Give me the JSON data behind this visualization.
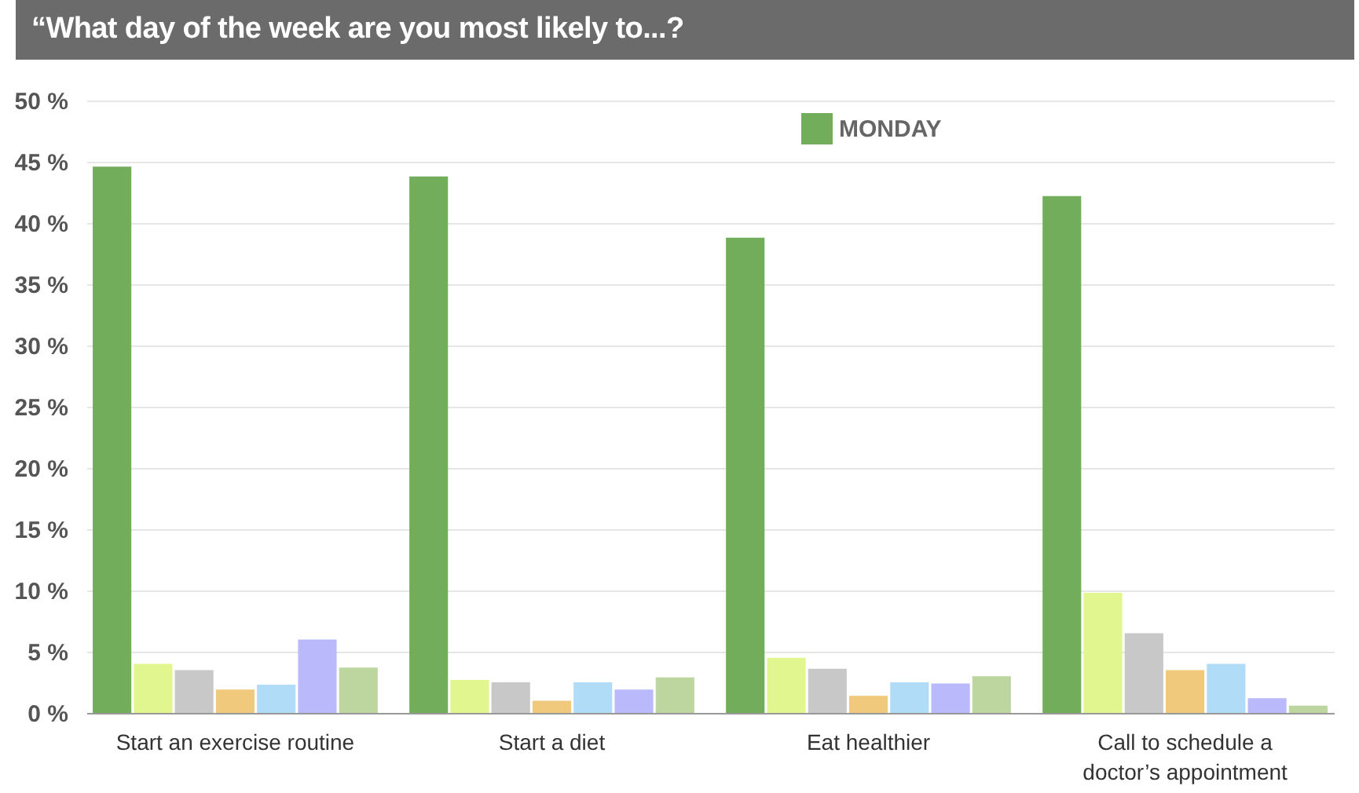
{
  "chart_data": {
    "type": "bar",
    "title": "“What day of the week are you most likely to...?",
    "categories": [
      "Start an exercise routine",
      "Start a diet",
      "Eat healthier",
      "Call to schedule a doctor’s appointment"
    ],
    "series": [
      {
        "name": "MONDAY",
        "color": "#71ad5a",
        "values": [
          44.6,
          43.8,
          38.8,
          42.2
        ]
      },
      {
        "color": "#e2f68f",
        "values": [
          4.0,
          2.7,
          4.5,
          9.8
        ]
      },
      {
        "color": "#c8c8c8",
        "values": [
          3.5,
          2.5,
          3.6,
          6.5
        ]
      },
      {
        "color": "#f0c97c",
        "values": [
          1.9,
          1.0,
          1.4,
          3.5
        ]
      },
      {
        "color": "#b0dcf7",
        "values": [
          2.3,
          2.5,
          2.5,
          4.0
        ]
      },
      {
        "color": "#b9b9fb",
        "values": [
          6.0,
          1.9,
          2.4,
          1.2
        ]
      },
      {
        "color": "#bdd6a0",
        "values": [
          3.7,
          2.9,
          3.0,
          0.6
        ]
      }
    ],
    "ylim": [
      0,
      50
    ],
    "yticks": [
      {
        "value": 0,
        "label": "0 %"
      },
      {
        "value": 5,
        "label": "5 %"
      },
      {
        "value": 10,
        "label": "10 %"
      },
      {
        "value": 15,
        "label": "15 %"
      },
      {
        "value": 20,
        "label": "20 %"
      },
      {
        "value": 25,
        "label": "25 %"
      },
      {
        "value": 30,
        "label": "30 %"
      },
      {
        "value": 35,
        "label": "35 %"
      },
      {
        "value": 40,
        "label": "40 %"
      },
      {
        "value": 45,
        "label": "45 %"
      },
      {
        "value": 50,
        "label": "50 %"
      }
    ],
    "grid": "y",
    "legend": "top right"
  }
}
